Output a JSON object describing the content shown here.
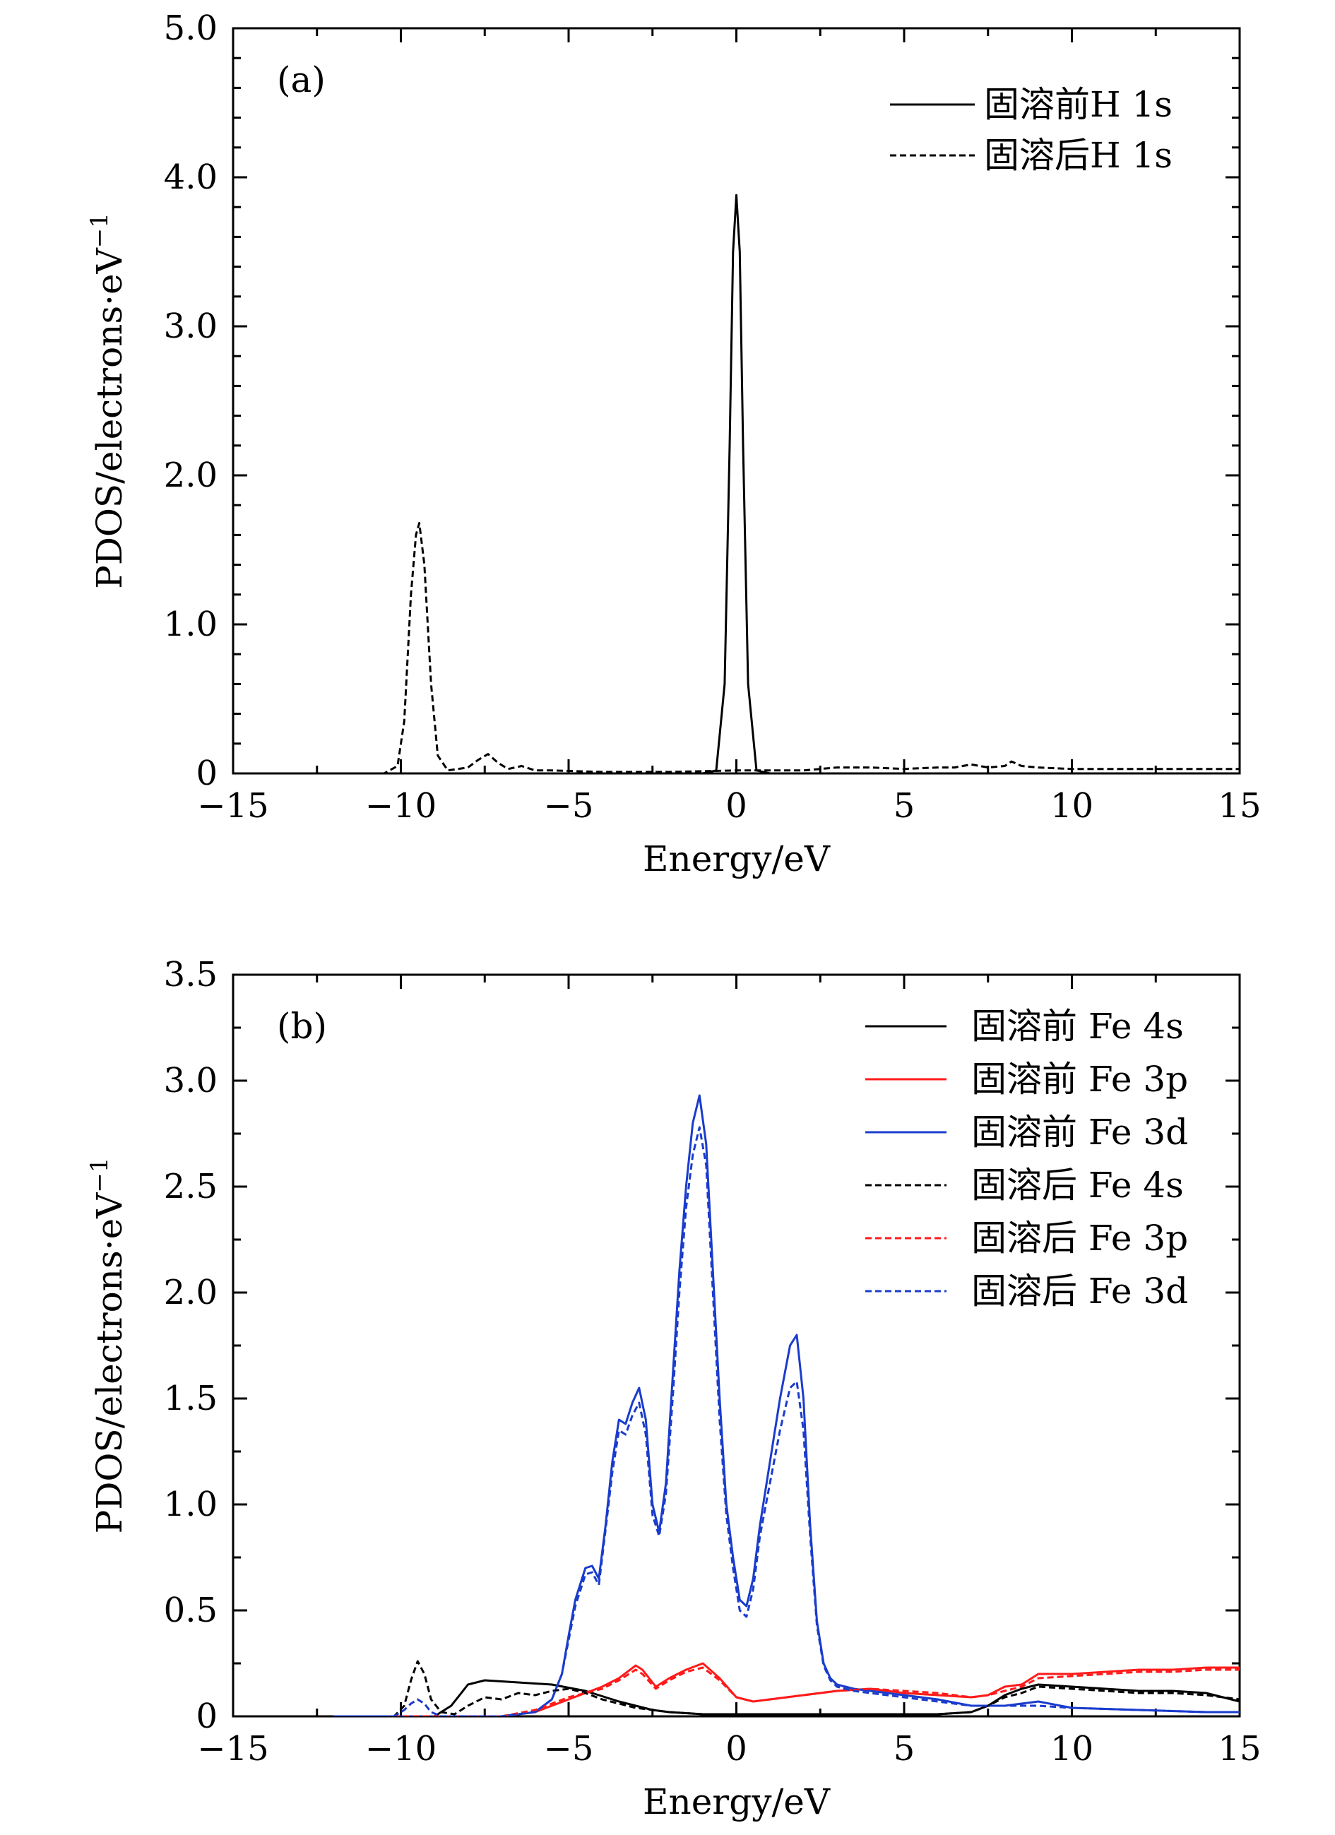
{
  "chart_data": [
    {
      "type": "line",
      "panel_label": "(a)",
      "xlabel": "Energy/eV",
      "ylabel": "PDOS/electrons·eV",
      "ylabel_superscript": "−1",
      "xlim": [
        -15,
        15
      ],
      "ylim": [
        0,
        5.0
      ],
      "xticks": [
        -15,
        -10,
        -5,
        0,
        5,
        10,
        15
      ],
      "xtick_labels": [
        "−15",
        "−10",
        "−5",
        "0",
        "5",
        "10",
        "15"
      ],
      "yticks": [
        0,
        1.0,
        2.0,
        3.0,
        4.0,
        5.0
      ],
      "ytick_labels": [
        "0",
        "1.0",
        "2.0",
        "3.0",
        "4.0",
        "5.0"
      ],
      "legend_position": "top-right",
      "series": [
        {
          "name": "固溶前H 1s",
          "color": "#000000",
          "dash": "solid",
          "x": [
            -15,
            -1.0,
            -0.6,
            -0.35,
            -0.2,
            -0.1,
            0.0,
            0.1,
            0.2,
            0.35,
            0.6,
            1.0,
            15
          ],
          "y": [
            0,
            0,
            0.02,
            0.6,
            2.2,
            3.5,
            3.88,
            3.5,
            2.2,
            0.6,
            0.02,
            0,
            0
          ]
        },
        {
          "name": "固溶后H 1s",
          "color": "#000000",
          "dash": "dashed",
          "x": [
            -15,
            -10.5,
            -10.1,
            -9.9,
            -9.7,
            -9.55,
            -9.45,
            -9.3,
            -9.1,
            -8.9,
            -8.6,
            -8.0,
            -7.7,
            -7.4,
            -7.1,
            -6.8,
            -6.4,
            -6.0,
            -5.5,
            -4.0,
            -2.0,
            0.0,
            2.0,
            3.0,
            4.0,
            5.0,
            6.0,
            6.5,
            7.0,
            7.5,
            8.0,
            8.2,
            8.5,
            9.0,
            10.0,
            12.0,
            14.0,
            15.0
          ],
          "y": [
            0,
            0,
            0.05,
            0.35,
            1.2,
            1.6,
            1.68,
            1.4,
            0.6,
            0.12,
            0.02,
            0.04,
            0.09,
            0.13,
            0.07,
            0.03,
            0.05,
            0.02,
            0.02,
            0.01,
            0.01,
            0.02,
            0.02,
            0.04,
            0.04,
            0.03,
            0.04,
            0.04,
            0.06,
            0.04,
            0.05,
            0.08,
            0.05,
            0.04,
            0.03,
            0.03,
            0.03,
            0.03
          ]
        }
      ]
    },
    {
      "type": "line",
      "panel_label": "(b)",
      "xlabel": "Energy/eV",
      "ylabel": "PDOS/electrons·eV",
      "ylabel_superscript": "−1",
      "xlim": [
        -15,
        15
      ],
      "ylim": [
        0,
        3.5
      ],
      "xticks": [
        -15,
        -10,
        -5,
        0,
        5,
        10,
        15
      ],
      "xtick_labels": [
        "−15",
        "−10",
        "−5",
        "0",
        "5",
        "10",
        "15"
      ],
      "yticks": [
        0,
        0.5,
        1.0,
        1.5,
        2.0,
        2.5,
        3.0,
        3.5
      ],
      "ytick_labels": [
        "0",
        "0.5",
        "1.0",
        "1.5",
        "2.0",
        "2.5",
        "3.0",
        "3.5"
      ],
      "legend_position": "top-right",
      "series": [
        {
          "name": "固溶前 Fe 4s",
          "color": "#000000",
          "dash": "solid",
          "x": [
            -12,
            -9,
            -8.5,
            -8.0,
            -7.5,
            -6.5,
            -5.5,
            -4.5,
            -3.5,
            -3.0,
            -2.5,
            -2.0,
            -1.0,
            0,
            2,
            4,
            6,
            7,
            7.5,
            8.0,
            8.5,
            9.0,
            10,
            11,
            12,
            13,
            14,
            14.5,
            15
          ],
          "y": [
            0,
            0,
            0.05,
            0.15,
            0.17,
            0.16,
            0.15,
            0.12,
            0.07,
            0.05,
            0.03,
            0.02,
            0.01,
            0.01,
            0.01,
            0.01,
            0.01,
            0.02,
            0.05,
            0.1,
            0.13,
            0.15,
            0.14,
            0.13,
            0.12,
            0.12,
            0.11,
            0.09,
            0.07
          ]
        },
        {
          "name": "固溶前 Fe 3p",
          "color": "#ff1a1a",
          "dash": "solid",
          "x": [
            -12,
            -7,
            -6,
            -5,
            -4,
            -3.5,
            -3.0,
            -2.8,
            -2.4,
            -2.0,
            -1.5,
            -1.0,
            -0.5,
            0,
            0.5,
            1,
            2,
            3,
            4,
            5,
            6,
            7,
            7.5,
            8,
            8.5,
            9,
            10,
            11,
            12,
            13,
            14,
            15
          ],
          "y": [
            0,
            0,
            0.02,
            0.08,
            0.14,
            0.18,
            0.24,
            0.22,
            0.14,
            0.18,
            0.22,
            0.25,
            0.18,
            0.09,
            0.07,
            0.08,
            0.1,
            0.12,
            0.13,
            0.11,
            0.1,
            0.09,
            0.1,
            0.14,
            0.15,
            0.2,
            0.2,
            0.21,
            0.22,
            0.22,
            0.23,
            0.23
          ]
        },
        {
          "name": "固溶前 Fe 3d",
          "color": "#1a3ccc",
          "dash": "solid",
          "x": [
            -12,
            -7,
            -6,
            -5.5,
            -5.2,
            -5.0,
            -4.8,
            -4.5,
            -4.3,
            -4.1,
            -3.9,
            -3.7,
            -3.5,
            -3.3,
            -3.1,
            -2.9,
            -2.7,
            -2.5,
            -2.3,
            -2.1,
            -1.9,
            -1.7,
            -1.5,
            -1.3,
            -1.1,
            -0.9,
            -0.7,
            -0.5,
            -0.3,
            -0.1,
            0.1,
            0.3,
            0.5,
            0.7,
            1.0,
            1.3,
            1.6,
            1.8,
            2.0,
            2.2,
            2.4,
            2.6,
            2.8,
            3.0,
            3.5,
            4.0,
            5.0,
            6.0,
            7.0,
            8.0,
            8.5,
            9.0,
            10.0,
            12.0,
            14.0,
            15.0
          ],
          "y": [
            0,
            0,
            0.02,
            0.08,
            0.2,
            0.38,
            0.55,
            0.7,
            0.71,
            0.65,
            0.9,
            1.2,
            1.4,
            1.38,
            1.48,
            1.55,
            1.4,
            1.0,
            0.87,
            1.1,
            1.6,
            2.1,
            2.5,
            2.8,
            2.93,
            2.7,
            2.1,
            1.5,
            1.0,
            0.75,
            0.55,
            0.52,
            0.65,
            0.9,
            1.2,
            1.5,
            1.75,
            1.8,
            1.5,
            0.9,
            0.45,
            0.25,
            0.18,
            0.15,
            0.13,
            0.12,
            0.1,
            0.08,
            0.05,
            0.05,
            0.06,
            0.07,
            0.04,
            0.03,
            0.02,
            0.02
          ]
        },
        {
          "name": "固溶后 Fe 4s",
          "color": "#000000",
          "dash": "dashed",
          "x": [
            -12,
            -10.2,
            -9.9,
            -9.7,
            -9.5,
            -9.3,
            -9.1,
            -8.8,
            -8.4,
            -8.0,
            -7.5,
            -7.0,
            -6.5,
            -6.0,
            -5.5,
            -5.0,
            -4.5,
            -4.0,
            -3.5,
            -3.0,
            -2.5,
            -2.0,
            -1.0,
            0,
            2,
            4,
            6,
            7,
            7.5,
            8.0,
            8.5,
            9.0,
            10,
            11,
            12,
            13,
            14,
            15
          ],
          "y": [
            0,
            0,
            0.05,
            0.17,
            0.26,
            0.2,
            0.08,
            0.02,
            0.01,
            0.05,
            0.09,
            0.08,
            0.11,
            0.1,
            0.12,
            0.13,
            0.11,
            0.08,
            0.06,
            0.04,
            0.03,
            0.02,
            0.01,
            0.01,
            0.01,
            0.01,
            0.01,
            0.02,
            0.05,
            0.09,
            0.11,
            0.14,
            0.13,
            0.12,
            0.11,
            0.11,
            0.1,
            0.08
          ]
        },
        {
          "name": "固溶后 Fe 3p",
          "color": "#ff1a1a",
          "dash": "dashed",
          "x": [
            -12,
            -7,
            -6,
            -5,
            -4,
            -3.5,
            -3.0,
            -2.8,
            -2.4,
            -2.0,
            -1.5,
            -1.0,
            -0.5,
            0,
            0.5,
            1,
            2,
            3,
            4,
            5,
            6,
            7,
            7.5,
            8,
            8.5,
            9,
            10,
            11,
            12,
            13,
            14,
            15
          ],
          "y": [
            0,
            0,
            0.03,
            0.09,
            0.13,
            0.17,
            0.22,
            0.2,
            0.13,
            0.17,
            0.21,
            0.23,
            0.17,
            0.09,
            0.07,
            0.08,
            0.1,
            0.12,
            0.13,
            0.12,
            0.11,
            0.09,
            0.1,
            0.12,
            0.14,
            0.18,
            0.19,
            0.2,
            0.21,
            0.21,
            0.22,
            0.22
          ]
        },
        {
          "name": "固溶后 Fe 3d",
          "color": "#1a3ccc",
          "dash": "dashed",
          "x": [
            -12,
            -10.2,
            -9.9,
            -9.7,
            -9.5,
            -9.3,
            -9.1,
            -8.8,
            -7,
            -6,
            -5.5,
            -5.2,
            -5.0,
            -4.8,
            -4.5,
            -4.3,
            -4.1,
            -3.9,
            -3.7,
            -3.5,
            -3.3,
            -3.1,
            -2.9,
            -2.7,
            -2.5,
            -2.3,
            -2.1,
            -1.9,
            -1.7,
            -1.5,
            -1.3,
            -1.1,
            -0.9,
            -0.7,
            -0.5,
            -0.3,
            -0.1,
            0.1,
            0.3,
            0.5,
            0.7,
            1.0,
            1.3,
            1.6,
            1.8,
            2.0,
            2.2,
            2.4,
            2.6,
            2.8,
            3.0,
            3.5,
            4.0,
            5.0,
            6.0,
            7.0,
            8.0,
            8.5,
            9.0,
            10.0,
            12.0,
            14.0,
            15.0
          ],
          "y": [
            0,
            0,
            0.03,
            0.06,
            0.08,
            0.06,
            0.02,
            0.0,
            0,
            0.02,
            0.08,
            0.2,
            0.36,
            0.52,
            0.67,
            0.68,
            0.62,
            0.88,
            1.15,
            1.35,
            1.33,
            1.42,
            1.48,
            1.33,
            0.95,
            0.85,
            1.05,
            1.5,
            2.0,
            2.4,
            2.65,
            2.78,
            2.6,
            2.0,
            1.4,
            0.95,
            0.7,
            0.5,
            0.47,
            0.6,
            0.85,
            1.1,
            1.35,
            1.55,
            1.58,
            1.35,
            0.85,
            0.43,
            0.24,
            0.17,
            0.14,
            0.12,
            0.11,
            0.09,
            0.07,
            0.05,
            0.05,
            0.05,
            0.05,
            0.04,
            0.03,
            0.02,
            0.02
          ]
        }
      ]
    }
  ]
}
